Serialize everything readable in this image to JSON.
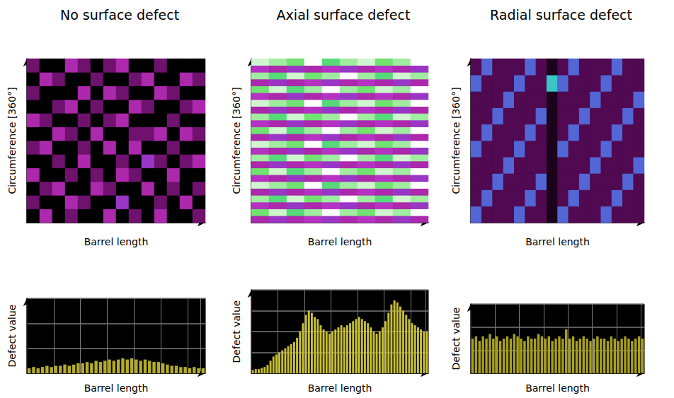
{
  "chart_data": [
    {
      "type": "heatmap",
      "title": "No surface defect",
      "xlabel": "Barrel length",
      "ylabel": "Circumference [360°]",
      "tick_labels": false,
      "color_range": [
        0,
        1
      ],
      "cells": [
        [
          0,
          0.3,
          0,
          0.2,
          0,
          0,
          0.3,
          0,
          0.2,
          0,
          0.3,
          0,
          0,
          0.2
        ],
        [
          0.2,
          0,
          0,
          0.3,
          0.2,
          0,
          0,
          0.4,
          0,
          0,
          0.2,
          0,
          0.3,
          0
        ],
        [
          0,
          0.2,
          0.3,
          0,
          0,
          0.3,
          0.2,
          0,
          0,
          0.3,
          0,
          0.2,
          0,
          0.2
        ],
        [
          0.3,
          0,
          0,
          0.2,
          0,
          0.2,
          0,
          0.3,
          0.2,
          0,
          0,
          0.3,
          0,
          0
        ],
        [
          0,
          0,
          0.2,
          0,
          0.3,
          0,
          0,
          0.2,
          0,
          0.4,
          0.2,
          0,
          0.2,
          0.3
        ],
        [
          0.2,
          0.3,
          0,
          0,
          0.2,
          0,
          0.3,
          0,
          0.3,
          0,
          0,
          0.2,
          0,
          0
        ],
        [
          0,
          0,
          0.3,
          0.2,
          0,
          0.3,
          0,
          0,
          0.2,
          0.2,
          0.3,
          0,
          0.3,
          0.2
        ],
        [
          0.3,
          0.2,
          0,
          0,
          0.2,
          0,
          0.2,
          0.3,
          0,
          0,
          0,
          0.2,
          0,
          0
        ],
        [
          0,
          0,
          0.2,
          0.3,
          0,
          0.2,
          0,
          0,
          0.3,
          0.2,
          0,
          0,
          0.2,
          0.3
        ],
        [
          0.2,
          0,
          0,
          0,
          0.3,
          0,
          0.3,
          0.2,
          0,
          0,
          0.3,
          0.2,
          0,
          0
        ],
        [
          0,
          0.3,
          0.2,
          0,
          0,
          0.2,
          0,
          0,
          0.2,
          0.3,
          0,
          0,
          0.3,
          0.2
        ],
        [
          0.2,
          0,
          0,
          0.3,
          0.2,
          0,
          0.2,
          0.3,
          0,
          0,
          0.2,
          0,
          0,
          0
        ]
      ]
    },
    {
      "type": "heatmap",
      "title": "Axial surface defect",
      "xlabel": "Barrel length",
      "ylabel": "Circumference [360°]",
      "tick_labels": false,
      "color_range": [
        0,
        1
      ],
      "cells": [
        [
          0.3,
          0.4,
          0.3,
          0.35,
          0.4,
          0.3,
          0.35,
          0.3,
          0.4,
          0.3
        ],
        [
          0.85,
          0.95,
          0.8,
          0.9,
          1,
          0.9,
          0.85,
          0.95,
          0.9,
          1
        ],
        [
          0.35,
          0.3,
          0.4,
          0.3,
          0.35,
          0.4,
          0.3,
          0.35,
          0.3,
          0.4
        ],
        [
          0.9,
          0.8,
          0.95,
          0.85,
          0.9,
          1,
          0.9,
          0.8,
          0.95,
          0.9
        ],
        [
          0.3,
          0.4,
          0.3,
          0.35,
          0.4,
          0.3,
          0.35,
          0.3,
          0.4,
          0.3
        ],
        [
          0.95,
          0.9,
          0.85,
          1,
          0.8,
          0.9,
          0.95,
          0.85,
          0.9,
          1
        ],
        [
          0.35,
          0.3,
          0.4,
          0.3,
          0.35,
          0.4,
          0.3,
          0.35,
          0.3,
          0.4
        ],
        [
          0.85,
          0.95,
          0.8,
          0.9,
          1,
          0.9,
          0.85,
          0.95,
          0.9,
          1
        ],
        [
          0.3,
          0.4,
          0.3,
          0.35,
          0.4,
          0.3,
          0.35,
          0.3,
          0.4,
          0.3
        ],
        [
          0.9,
          0.8,
          0.95,
          0.85,
          0.9,
          1,
          0.9,
          0.8,
          0.95,
          0.9
        ],
        [
          0.35,
          0.3,
          0.4,
          0.3,
          0.35,
          0.4,
          0.3,
          0.35,
          0.3,
          0.4
        ],
        [
          0.95,
          0.9,
          0.85,
          1,
          0.8,
          0.9,
          0.95,
          0.85,
          0.9,
          1
        ],
        [
          0.3,
          0.4,
          0.3,
          0.35,
          0.4,
          0.3,
          0.35,
          0.3,
          0.4,
          0.3
        ],
        [
          0.85,
          0.95,
          0.8,
          0.9,
          1,
          0.9,
          0.85,
          0.95,
          0.9,
          1
        ],
        [
          0.35,
          0.3,
          0.4,
          0.3,
          0.35,
          0.4,
          0.3,
          0.35,
          0.3,
          0.4
        ],
        [
          0.9,
          0.8,
          0.95,
          0.85,
          0.9,
          1,
          0.9,
          0.8,
          0.95,
          0.9
        ],
        [
          0.3,
          0.4,
          0.3,
          0.35,
          0.4,
          0.3,
          0.35,
          0.3,
          0.4,
          0.3
        ],
        [
          0.95,
          0.9,
          0.85,
          1,
          0.8,
          0.9,
          0.95,
          0.85,
          0.9,
          1
        ],
        [
          0.35,
          0.3,
          0.4,
          0.3,
          0.35,
          0.4,
          0.3,
          0.35,
          0.3,
          0.4
        ],
        [
          0.85,
          0.95,
          0.8,
          0.9,
          1,
          0.9,
          0.85,
          0.95,
          0.9,
          1
        ],
        [
          0.3,
          0.4,
          0.3,
          0.35,
          0.4,
          0.3,
          0.35,
          0.3,
          0.4,
          0.3
        ],
        [
          0.9,
          0.8,
          0.95,
          0.85,
          0.9,
          1,
          0.9,
          0.8,
          0.95,
          0.9
        ],
        [
          0.35,
          0.3,
          0.4,
          0.3,
          0.35,
          0.4,
          0.3,
          0.35,
          0.3,
          0.4
        ],
        [
          0.95,
          0.9,
          0.85,
          1,
          0.8,
          0.9,
          0.95,
          0.85,
          0.9,
          1
        ]
      ]
    },
    {
      "type": "heatmap",
      "title": "Radial surface defect",
      "xlabel": "Barrel length",
      "ylabel": "Circumference [360°]",
      "tick_labels": false,
      "color_range": [
        0,
        1
      ],
      "cells": [
        [
          0.55,
          0.15,
          0.15,
          0.15,
          0.55,
          0.15,
          0.15,
          0.05,
          0.55,
          0.15,
          0.15,
          0.15,
          0.55,
          0.15,
          0.15,
          0.15
        ],
        [
          0.15,
          0.55,
          0.15,
          0.15,
          0.15,
          0.55,
          0.15,
          0.05,
          0.15,
          0.55,
          0.15,
          0.15,
          0.15,
          0.55,
          0.15,
          0.15
        ],
        [
          0.15,
          0.15,
          0.55,
          0.15,
          0.15,
          0.15,
          0.55,
          0.05,
          0.15,
          0.15,
          0.55,
          0.15,
          0.15,
          0.15,
          0.55,
          0.15
        ],
        [
          0.15,
          0.15,
          0.15,
          0.55,
          0.15,
          0.15,
          0.15,
          0.05,
          0.15,
          0.15,
          0.15,
          0.55,
          0.15,
          0.15,
          0.15,
          0.55
        ],
        [
          0.55,
          0.15,
          0.15,
          0.15,
          0.55,
          0.15,
          0.15,
          0.05,
          0.55,
          0.15,
          0.15,
          0.15,
          0.55,
          0.15,
          0.15,
          0.15
        ],
        [
          0.15,
          0.55,
          0.15,
          0.15,
          0.15,
          0.55,
          0.15,
          0.05,
          0.15,
          0.55,
          0.15,
          0.15,
          0.15,
          0.55,
          0.15,
          0.15
        ],
        [
          0.15,
          0.15,
          0.55,
          0.15,
          0.15,
          0.15,
          0.55,
          0.05,
          0.15,
          0.15,
          0.55,
          0.15,
          0.15,
          0.15,
          0.55,
          0.15
        ],
        [
          0.15,
          0.15,
          0.15,
          0.55,
          0.15,
          0.15,
          0.15,
          0.05,
          0.15,
          0.15,
          0.15,
          0.55,
          0.15,
          0.15,
          0.15,
          0.55
        ],
        [
          0.55,
          0.15,
          0.15,
          0.15,
          0.55,
          0.15,
          0.15,
          0.7,
          0.55,
          0.15,
          0.15,
          0.15,
          0.55,
          0.15,
          0.15,
          0.15
        ],
        [
          0.15,
          0.55,
          0.15,
          0.15,
          0.15,
          0.55,
          0.15,
          0.05,
          0.15,
          0.55,
          0.15,
          0.15,
          0.15,
          0.55,
          0.15,
          0.15
        ]
      ]
    },
    {
      "type": "bar",
      "xlabel": "Barrel length",
      "ylabel": "Defect value",
      "color": "#b4ac28",
      "grid": true,
      "tick_labels": false,
      "ylim": [
        0,
        3
      ],
      "yticks": [
        0,
        1,
        2,
        3
      ],
      "values": [
        0.2,
        0.25,
        0.2,
        0.25,
        0.3,
        0.25,
        0.3,
        0.3,
        0.35,
        0.3,
        0.35,
        0.4,
        0.4,
        0.45,
        0.4,
        0.5,
        0.45,
        0.5,
        0.55,
        0.5,
        0.55,
        0.6,
        0.55,
        0.6,
        0.55,
        0.5,
        0.55,
        0.5,
        0.45,
        0.45,
        0.4,
        0.35,
        0.3,
        0.3,
        0.25,
        0.25,
        0.2,
        0.25,
        0.2,
        0.2
      ]
    },
    {
      "type": "bar",
      "xlabel": "Barrel length",
      "ylabel": "Defect value",
      "color": "#c8c034",
      "grid": true,
      "tick_labels": false,
      "ylim": [
        0,
        4
      ],
      "yticks": [
        0,
        1,
        2,
        3,
        4
      ],
      "values": [
        0.15,
        0.2,
        0.2,
        0.25,
        0.3,
        0.4,
        0.6,
        0.8,
        0.9,
        1.0,
        1.1,
        1.2,
        1.3,
        1.4,
        1.5,
        1.7,
        2.0,
        2.4,
        2.8,
        3.0,
        2.9,
        2.7,
        2.6,
        2.3,
        2.1,
        2.0,
        1.9,
        2.0,
        2.1,
        2.2,
        2.3,
        2.2,
        2.3,
        2.4,
        2.5,
        2.6,
        2.7,
        2.6,
        2.5,
        2.4,
        2.2,
        2.0,
        1.9,
        2.0,
        2.2,
        2.5,
        2.9,
        3.3,
        3.5,
        3.4,
        3.2,
        3.0,
        2.8,
        2.6,
        2.4,
        2.3,
        2.2,
        2.1,
        2.0,
        2.0
      ]
    },
    {
      "type": "bar",
      "xlabel": "Barrel length",
      "ylabel": "Defect value",
      "color": "#a8a020",
      "grid": true,
      "tick_labels": false,
      "ylim": [
        0,
        3
      ],
      "yticks": [
        0,
        1,
        2,
        3
      ],
      "values": [
        1.5,
        1.6,
        1.4,
        1.6,
        1.5,
        1.7,
        1.5,
        1.6,
        1.4,
        1.5,
        1.6,
        1.5,
        1.7,
        1.6,
        1.5,
        1.4,
        1.6,
        1.5,
        1.5,
        1.7,
        1.6,
        1.5,
        1.6,
        1.4,
        1.5,
        1.6,
        1.5,
        1.9,
        1.5,
        1.6,
        1.4,
        1.5,
        1.6,
        1.5,
        1.4,
        1.5,
        1.6,
        1.5,
        1.5,
        1.4,
        1.6,
        1.5,
        1.4,
        1.5,
        1.6,
        1.5,
        1.4,
        1.5,
        1.6,
        1.5
      ]
    }
  ]
}
